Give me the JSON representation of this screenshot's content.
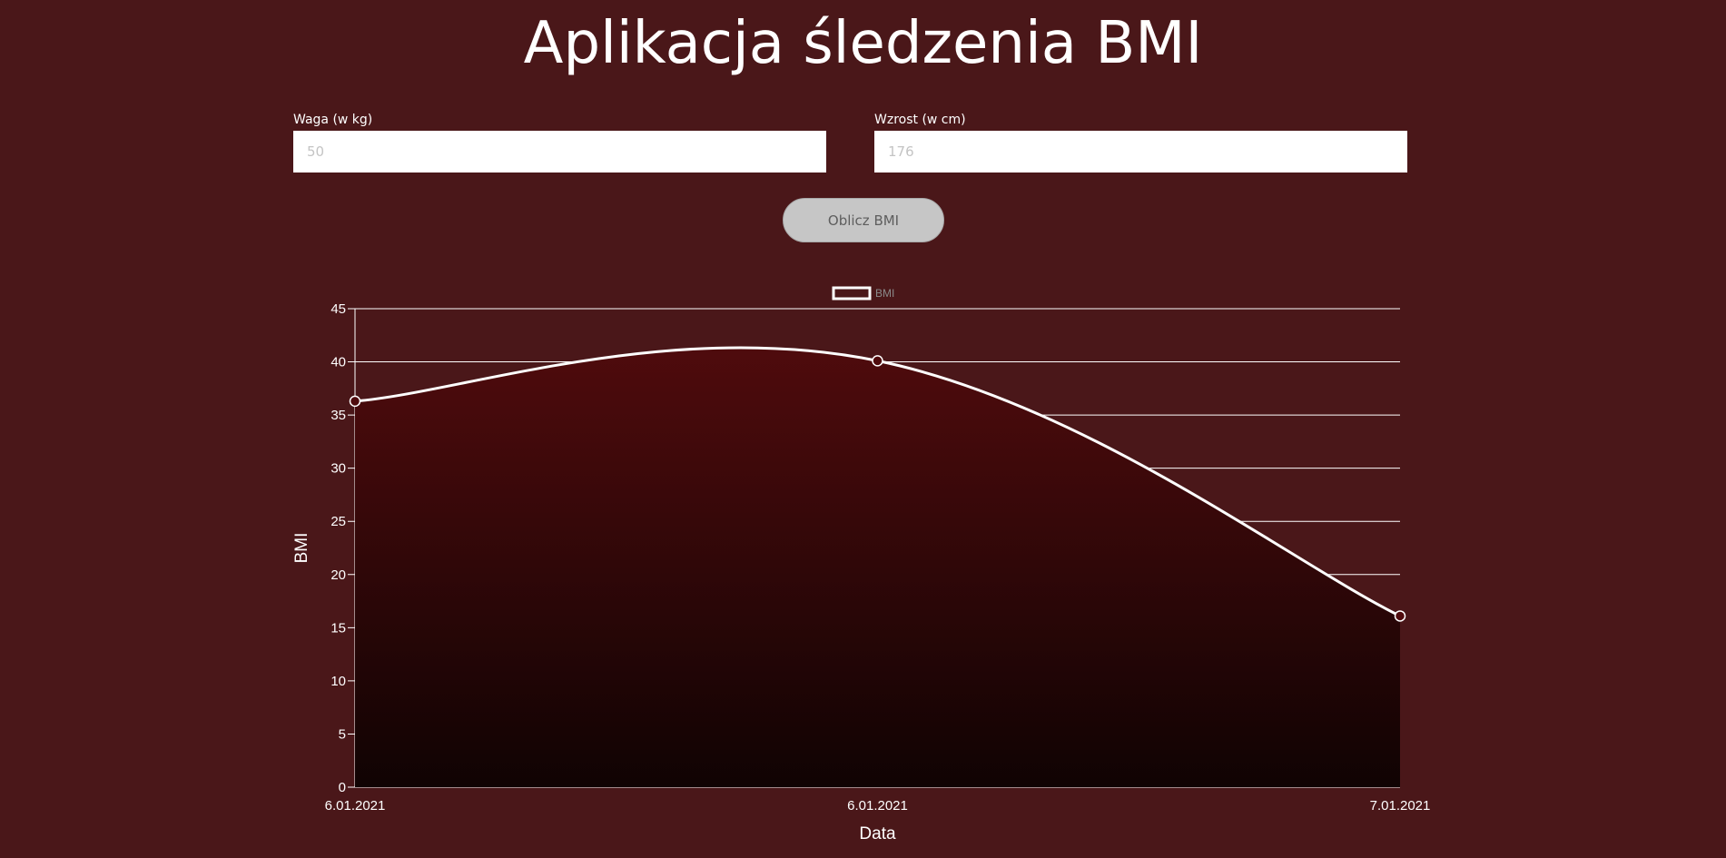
{
  "header": {
    "title": "Aplikacja śledzenia BMI"
  },
  "form": {
    "weight": {
      "label": "Waga (w kg)",
      "placeholder": "50",
      "value": ""
    },
    "height": {
      "label": "Wzrost (w cm)",
      "placeholder": "176",
      "value": ""
    },
    "submit_label": "Oblicz BMI"
  },
  "colors": {
    "background": "#4a1719",
    "line": "#ffffff",
    "fill_top": "#4f0b0d",
    "fill_bottom": "#100303",
    "grid": "#ffffff"
  },
  "chart_data": {
    "type": "area",
    "x": [
      "6.01.2021",
      "6.01.2021",
      "7.01.2021"
    ],
    "series": [
      {
        "name": "BMI",
        "values": [
          36.3,
          40.1,
          16.1
        ]
      }
    ],
    "xlabel": "Data",
    "ylabel": "BMI",
    "ylim": [
      0,
      45
    ],
    "yticks": [
      0,
      5,
      10,
      15,
      20,
      25,
      30,
      35,
      40,
      45
    ],
    "legend": "top-center",
    "grid": "horizontal",
    "curve": "smooth"
  }
}
